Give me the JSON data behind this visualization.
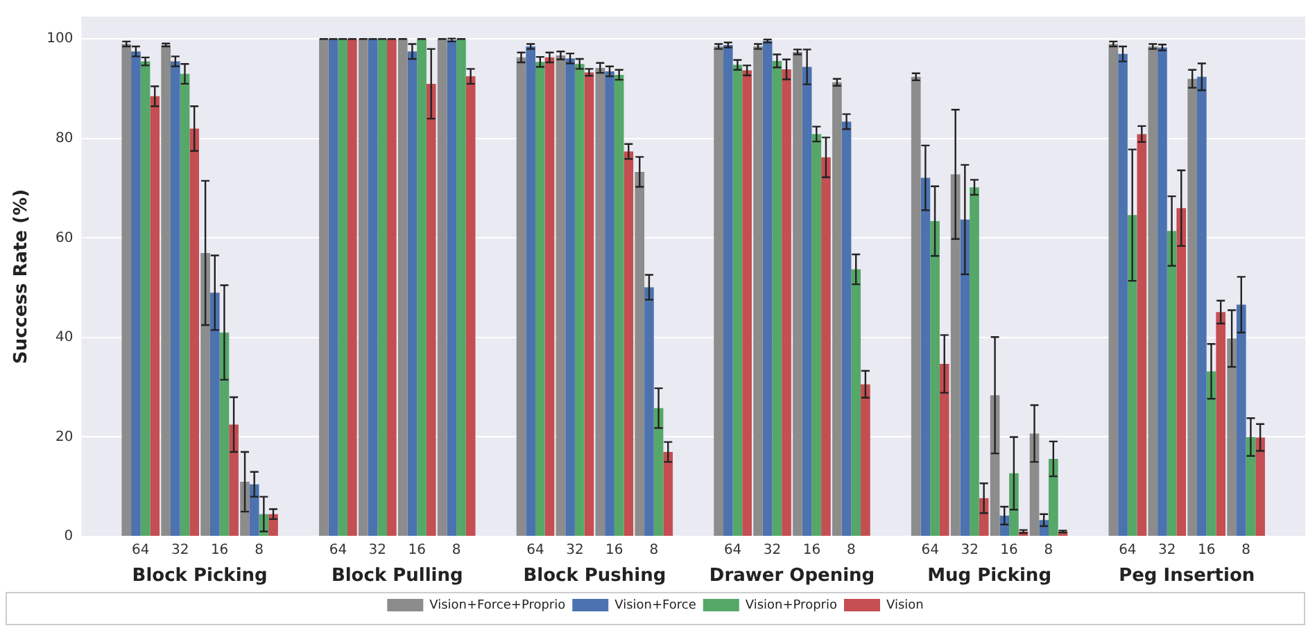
{
  "chart_data": {
    "type": "bar",
    "ylabel": "Success Rate (%)",
    "categories": [
      null,
      "64",
      "32",
      "16",
      "8",
      null,
      "64",
      "32",
      "16",
      "8",
      null,
      "64",
      "32",
      "16",
      "8",
      null,
      "64",
      "32",
      "16",
      "8",
      null,
      "64",
      "32",
      "16",
      "8",
      null,
      "64",
      "32",
      "16",
      "8",
      null
    ],
    "annotations": [
      "Block Picking",
      "Block Pulling",
      "Block Pushing",
      "Drawer Opening",
      "Mug Picking",
      "Peg Insertion"
    ],
    "series": [
      {
        "name": "Vision+Force+Proprio",
        "color": "#8c8c8c",
        "values": [
          null,
          99,
          98.8,
          57,
          11,
          null,
          100,
          100,
          100,
          100,
          null,
          96.3,
          96.7,
          94.2,
          73.3,
          null,
          98.5,
          98.5,
          97.4,
          91.3,
          null,
          92.4,
          72.8,
          28.4,
          20.7,
          null,
          99,
          98.5,
          92,
          39.8,
          null
        ],
        "errors": [
          null,
          0.5,
          0.3,
          14.5,
          6,
          null,
          0,
          0,
          0,
          0,
          null,
          1,
          0.8,
          1,
          3,
          null,
          0.5,
          0.5,
          0.5,
          0.7,
          null,
          0.7,
          13,
          11.7,
          5.7,
          null,
          0.5,
          0.5,
          1.8,
          5.7,
          null
        ]
      },
      {
        "name": "Vision+Force",
        "color": "#4c72b0",
        "values": [
          null,
          97.5,
          95.5,
          49,
          10.5,
          null,
          100,
          100,
          97.5,
          99.8,
          null,
          98.5,
          96.1,
          93.5,
          50.1,
          null,
          98.8,
          99.6,
          94.4,
          83.4,
          null,
          72.1,
          63.7,
          4.2,
          3.3,
          null,
          97,
          98.3,
          92.4,
          46.6,
          null
        ],
        "errors": [
          null,
          1,
          1,
          7.5,
          2.5,
          null,
          0,
          0,
          1.5,
          0.3,
          null,
          0.5,
          1,
          1,
          2.5,
          null,
          0.5,
          0.3,
          3.5,
          1.5,
          null,
          6.5,
          11,
          1.8,
          1.2,
          null,
          1.5,
          0.6,
          2.7,
          5.6,
          null
        ]
      },
      {
        "name": "Vision+Proprio",
        "color": "#55a868",
        "values": [
          null,
          95.5,
          93,
          41,
          4.5,
          null,
          100,
          100,
          100,
          100,
          null,
          95.4,
          95,
          92.8,
          25.8,
          null,
          94.8,
          95.6,
          80.9,
          53.7,
          null,
          63.4,
          70.2,
          12.7,
          15.6,
          null,
          64.6,
          61.4,
          33.2,
          20,
          null
        ],
        "errors": [
          null,
          0.8,
          2,
          9.5,
          3.5,
          null,
          0,
          0,
          0,
          0,
          null,
          1,
          1,
          1,
          4,
          null,
          1,
          1.3,
          1.5,
          3,
          null,
          7,
          1.5,
          7.3,
          3.5,
          null,
          13.2,
          7,
          5.5,
          3.8,
          null
        ]
      },
      {
        "name": "Vision",
        "color": "#c44e52",
        "values": [
          null,
          88.5,
          82,
          22.5,
          4.5,
          null,
          100,
          100,
          91,
          92.5,
          null,
          96.3,
          93.3,
          77.4,
          17,
          null,
          93.7,
          93.9,
          76.2,
          30.6,
          null,
          34.7,
          7.7,
          1,
          1,
          null,
          80.9,
          66,
          45.1,
          19.9,
          null
        ],
        "errors": [
          null,
          2,
          4.5,
          5.5,
          1,
          null,
          0,
          0,
          7,
          1.5,
          null,
          1,
          0.7,
          1.5,
          2,
          null,
          1,
          2,
          4,
          2.7,
          null,
          5.8,
          3,
          0.3,
          0.2,
          null,
          1.6,
          7.6,
          2.3,
          2.7,
          null
        ]
      }
    ],
    "ylim": [
      0,
      104.5
    ],
    "yticks": [
      0,
      20,
      40,
      60,
      80,
      100
    ],
    "grid": "y",
    "legend": "bottom"
  }
}
